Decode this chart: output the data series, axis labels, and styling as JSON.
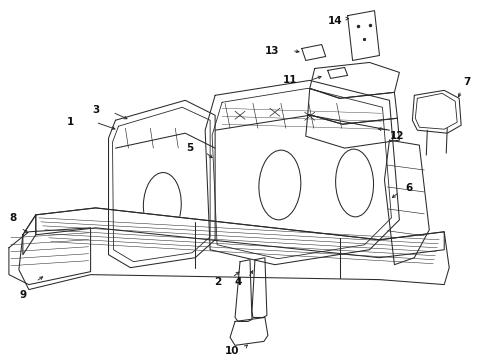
{
  "bg_color": "#ffffff",
  "line_color": "#2a2a2a",
  "label_color": "#111111",
  "fig_width": 4.89,
  "fig_height": 3.6,
  "dpi": 100,
  "lw": 0.75
}
